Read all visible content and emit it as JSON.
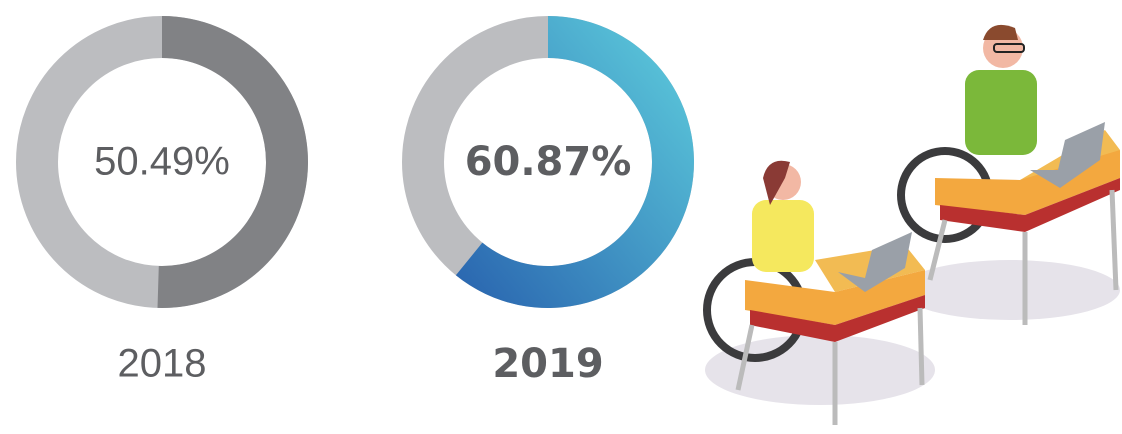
{
  "chart_data": [
    {
      "type": "donut",
      "title": "2018",
      "values": [
        50.49
      ],
      "value_labels": [
        "50.49%"
      ],
      "color": "#818285",
      "track_color": "#bcbdc0"
    },
    {
      "type": "donut",
      "title": "2019",
      "values": [
        60.87
      ],
      "value_labels": [
        "60.87%"
      ],
      "color": [
        "#2862ae",
        "#5fd0de"
      ],
      "track_color": "#bcbdc0"
    }
  ]
}
